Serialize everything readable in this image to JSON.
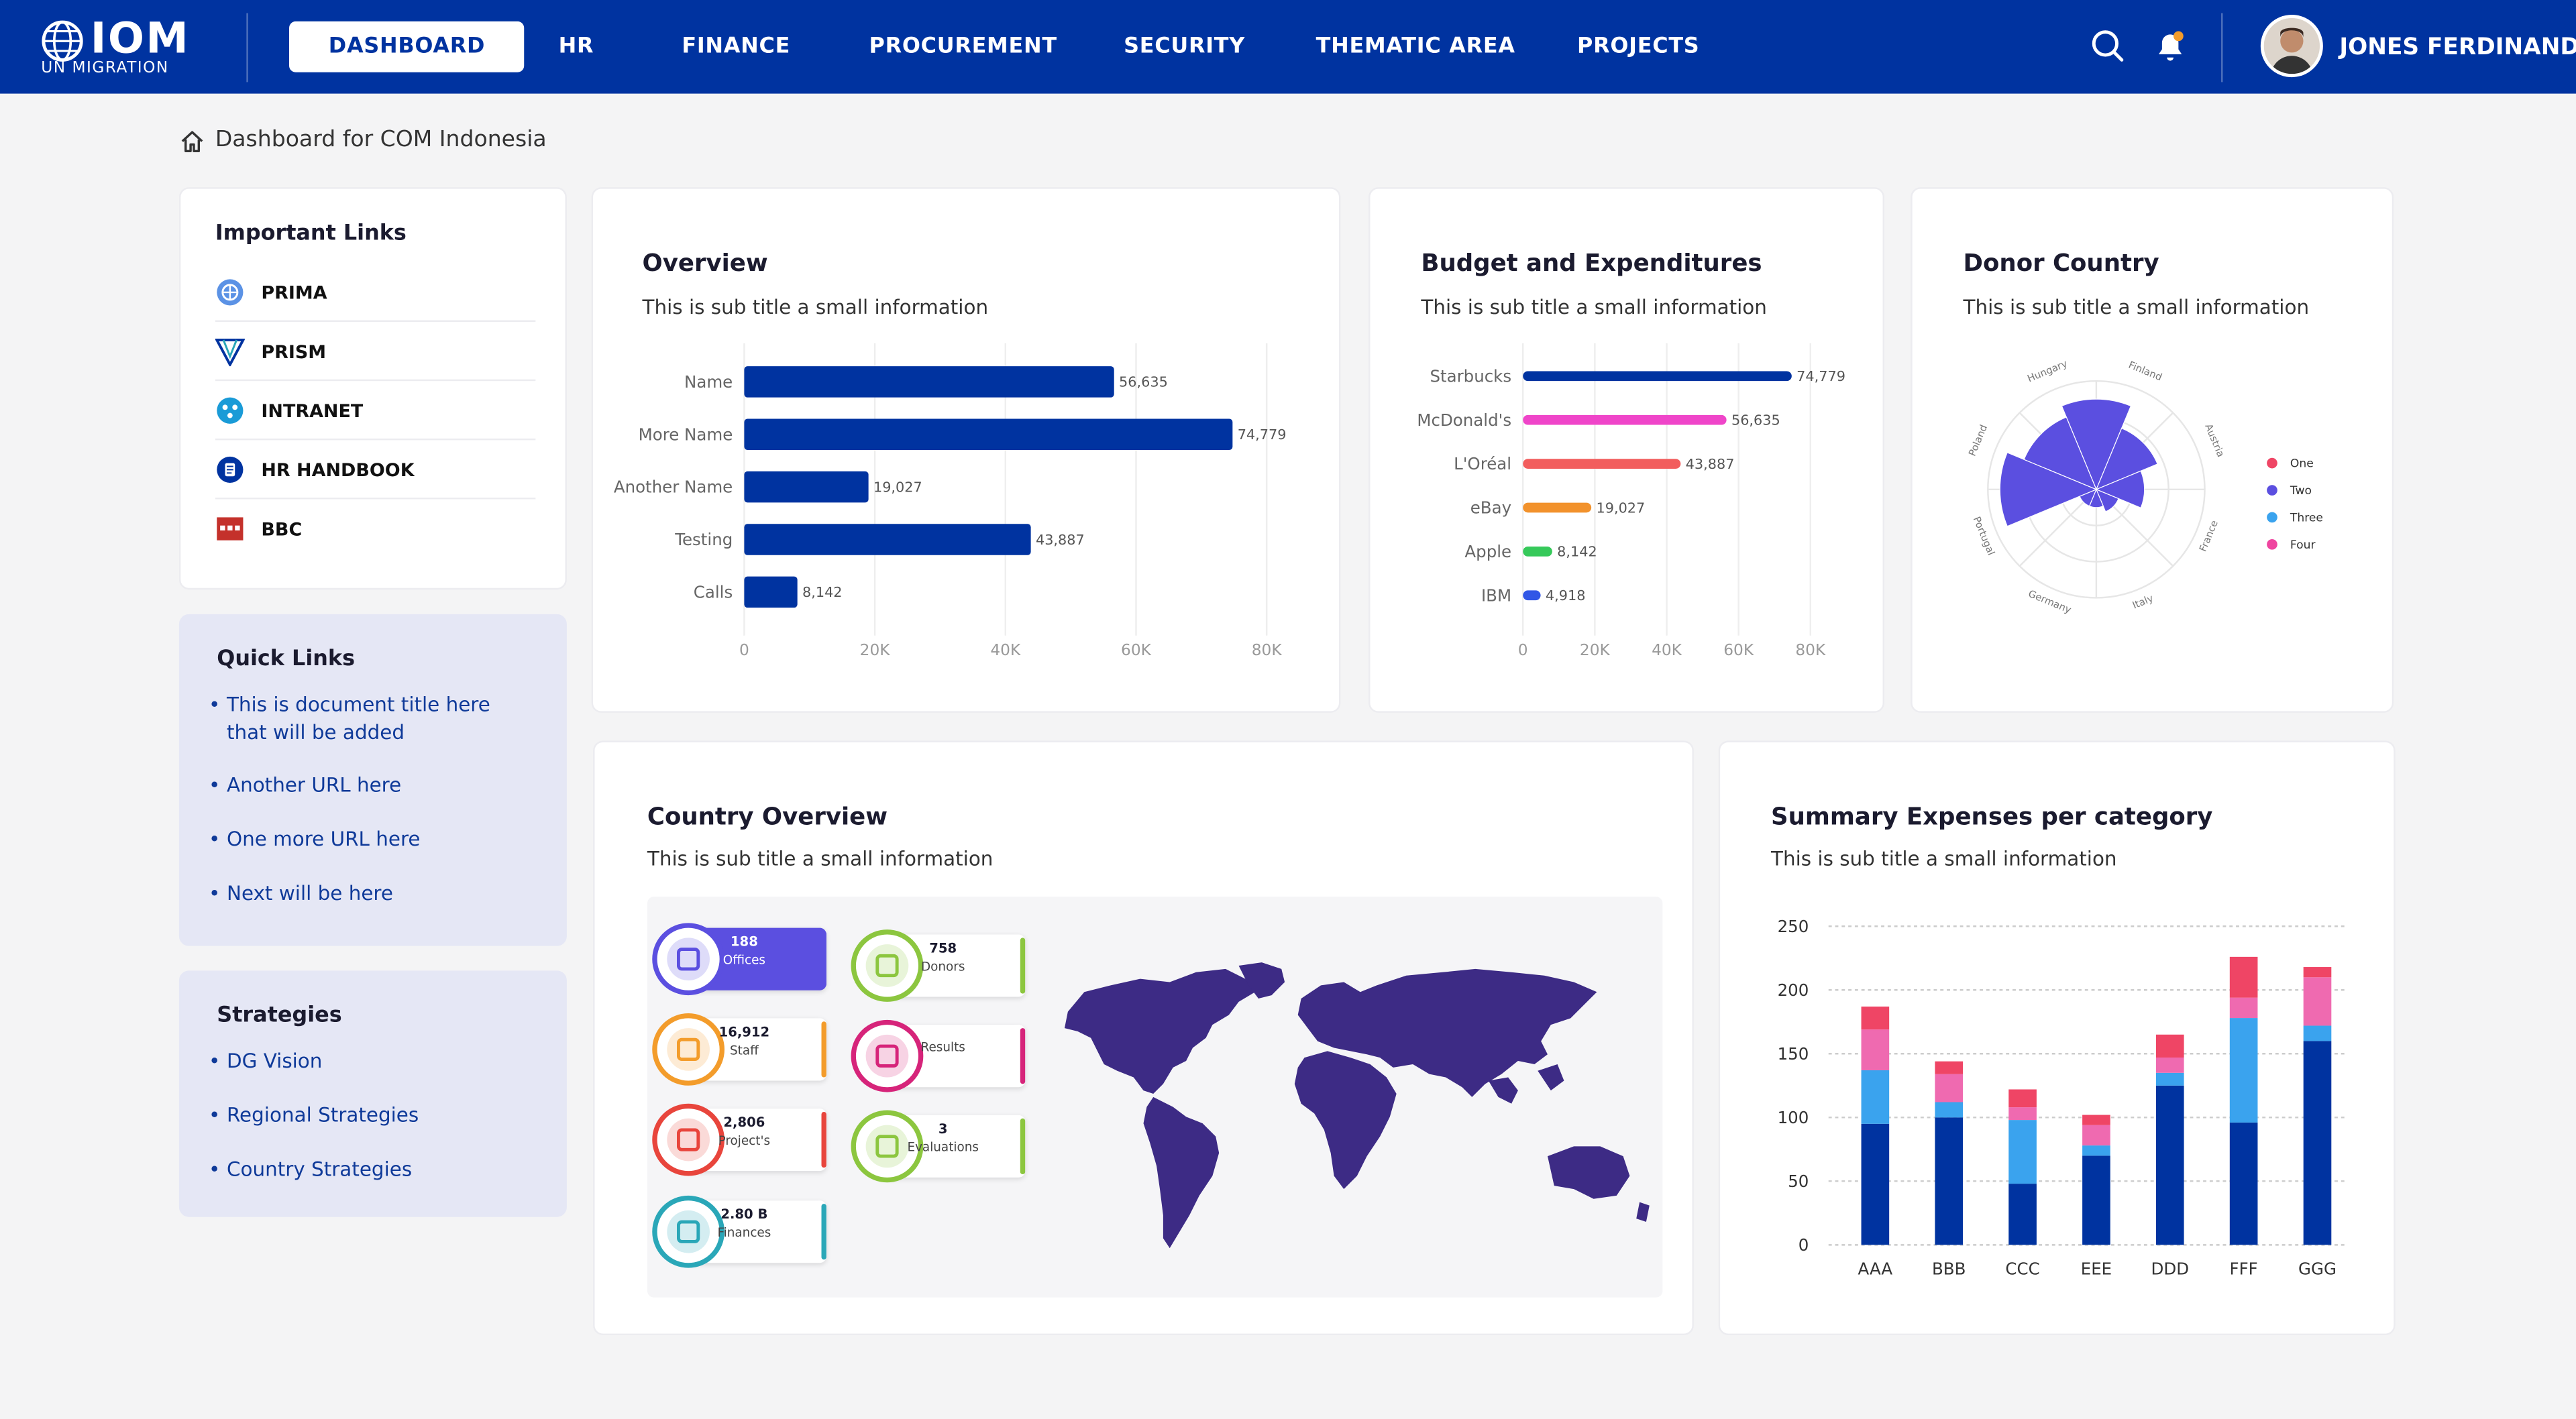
{
  "colors": {
    "primary": "#0033a0",
    "accent_purple": "#5b4fe0",
    "map": "#3d2b85"
  },
  "nav": {
    "logo_text": "IOM",
    "logo_sub": "UN MIGRATION",
    "items": [
      "DASHBOARD",
      "HR",
      "FINANCE",
      "PROCUREMENT",
      "SECURITY",
      "THEMATIC AREA",
      "PROJECTS"
    ],
    "active": "DASHBOARD",
    "user_name": "JONES FERDINAND"
  },
  "breadcrumb": "Dashboard for COM Indonesia",
  "important_links": {
    "title": "Important Links",
    "items": [
      {
        "label": "PRIMA",
        "icon": "un-globe-icon"
      },
      {
        "label": "PRISM",
        "icon": "prism-icon"
      },
      {
        "label": "INTRANET",
        "icon": "intranet-icon"
      },
      {
        "label": "HR HANDBOOK",
        "icon": "handbook-icon"
      },
      {
        "label": "BBC",
        "icon": "bbc-icon"
      }
    ]
  },
  "quick_links": {
    "title": "Quick Links",
    "items": [
      "This is document title here that will be added",
      "Another URL here",
      "One more URL here",
      "Next will be here"
    ]
  },
  "strategies": {
    "title": "Strategies",
    "items": [
      "DG Vision",
      "Regional Strategies",
      "Country Strategies"
    ]
  },
  "overview": {
    "title": "Overview",
    "subtitle": "This is sub title a small information"
  },
  "budget": {
    "title": "Budget and Expenditures",
    "subtitle": "This is sub title a small information"
  },
  "donor": {
    "title": "Donor Country",
    "subtitle": "This is sub title a small information"
  },
  "country": {
    "title": "Country Overview",
    "subtitle": "This is sub title a small information",
    "stats": [
      {
        "value": "188",
        "label": "Offices",
        "color": "#5b4fe0",
        "icon": "office-building-icon"
      },
      {
        "value": "758",
        "label": "Donors",
        "color": "#8cc63f",
        "icon": "donor-heart-icon"
      },
      {
        "value": "16,912",
        "label": "Staff",
        "color": "#f39c2b",
        "icon": "staff-people-icon"
      },
      {
        "value": "",
        "label": "Results",
        "color": "#d6247a",
        "icon": "results-check-icon"
      },
      {
        "value": "2,806",
        "label": "Project's",
        "color": "#e8453c",
        "icon": "project-folder-icon"
      },
      {
        "value": "3",
        "label": "Evaluations",
        "color": "#8cc63f",
        "icon": "evaluation-image-icon"
      },
      {
        "value": "2.80 B",
        "label": "Finances",
        "color": "#2aa7b8",
        "icon": "finance-dollar-icon"
      }
    ]
  },
  "summary": {
    "title": "Summary Expenses per category",
    "subtitle": "This is sub title a small information"
  },
  "chart_data": [
    {
      "type": "bar",
      "orientation": "horizontal",
      "name": "Overview",
      "categories": [
        "Name",
        "More Name",
        "Another Name",
        "Testing",
        "Calls"
      ],
      "values": [
        56635,
        74779,
        19027,
        43887,
        8142
      ],
      "data_labels": [
        "56,635",
        "74,779",
        "19,027",
        "43,887",
        "8,142"
      ],
      "xlim": [
        0,
        80000
      ],
      "xticks": [
        "0",
        "20K",
        "40K",
        "60K",
        "80K"
      ],
      "grid": true,
      "color": "#0033a0"
    },
    {
      "type": "bar",
      "orientation": "horizontal",
      "name": "Budget and Expenditures",
      "categories": [
        "Starbucks",
        "McDonald's",
        "L'Oréal",
        "eBay",
        "Apple",
        "IBM"
      ],
      "values": [
        74779,
        56635,
        43887,
        19027,
        8142,
        4918
      ],
      "data_labels": [
        "74,779",
        "56,635",
        "43,887",
        "19,027",
        "8,142",
        "4,918"
      ],
      "colors": [
        "#0033a0",
        "#ef45c9",
        "#f25d5d",
        "#f2922c",
        "#36c95a",
        "#3157e6"
      ],
      "xlim": [
        0,
        80000
      ],
      "xticks": [
        "0",
        "20K",
        "40K",
        "60K",
        "80K"
      ],
      "grid": true
    },
    {
      "type": "polar-area",
      "name": "Donor Country",
      "categories": [
        "Finland",
        "Austria",
        "France",
        "Italy",
        "Germany",
        "Portugal",
        "Poland",
        "Hungary"
      ],
      "values": [
        3,
        2.2,
        1.6,
        0.8,
        0.6,
        0.6,
        3.2,
        2.6
      ],
      "legend": [
        "One",
        "Two",
        "Three",
        "Four"
      ],
      "legend_colors": [
        "#ef4565",
        "#5b4fe0",
        "#3aa3ee",
        "#ef45a0"
      ],
      "legend_position": "right",
      "color": "#5b4fe0"
    },
    {
      "type": "bar",
      "stacked": true,
      "name": "Summary Expenses per category",
      "categories": [
        "AAA",
        "BBB",
        "CCC",
        "EEE",
        "DDD",
        "FFF",
        "GGG"
      ],
      "ylim": [
        0,
        250
      ],
      "yticks": [
        "0",
        "50",
        "100",
        "150",
        "200",
        "250"
      ],
      "series": [
        {
          "values": [
            95,
            100,
            48,
            70,
            125,
            96,
            160
          ],
          "color": "#0033a0"
        },
        {
          "values": [
            42,
            12,
            50,
            8,
            10,
            82,
            12
          ],
          "color": "#3aa3ee"
        },
        {
          "values": [
            32,
            22,
            10,
            16,
            12,
            16,
            38
          ],
          "color": "#ef6ab0"
        },
        {
          "values": [
            18,
            10,
            14,
            8,
            18,
            32,
            8
          ],
          "color": "#ef4565"
        }
      ]
    }
  ]
}
